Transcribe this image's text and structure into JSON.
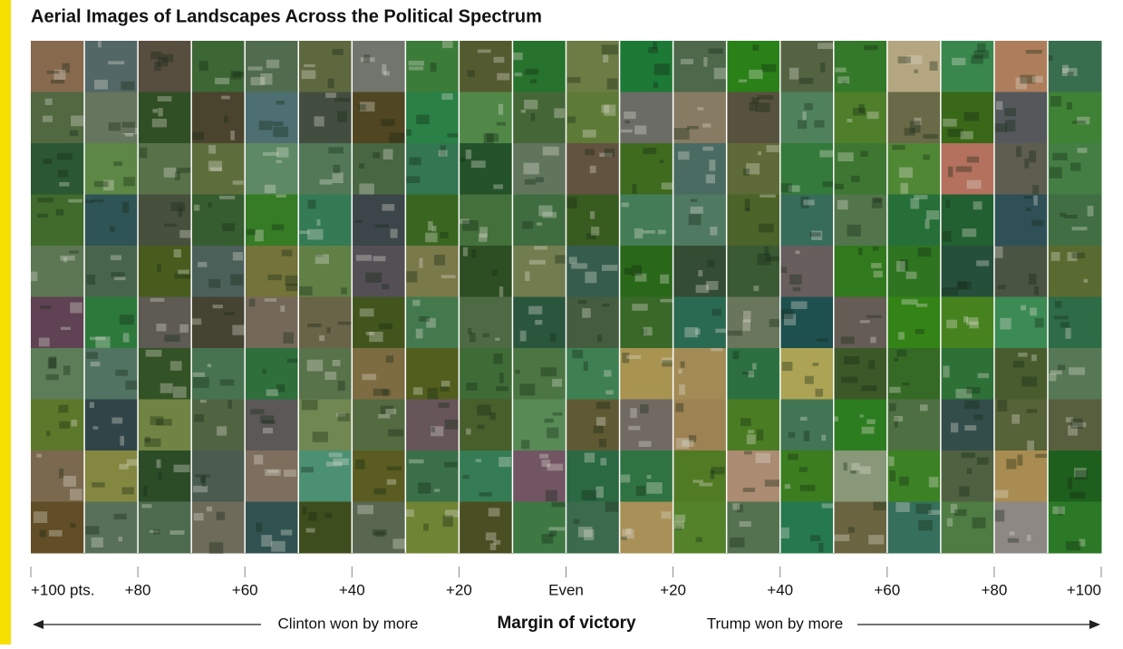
{
  "title": "Aerial Images of Landscapes Across the Political Spectrum",
  "axis": {
    "ticks": [
      "+100 pts.",
      "+80",
      "+60",
      "+40",
      "+20",
      "Even",
      "+20",
      "+40",
      "+60",
      "+80",
      "+100"
    ],
    "label": "Margin of victory",
    "left_note": "Clinton won by more",
    "right_note": "Trump won by more"
  }
}
